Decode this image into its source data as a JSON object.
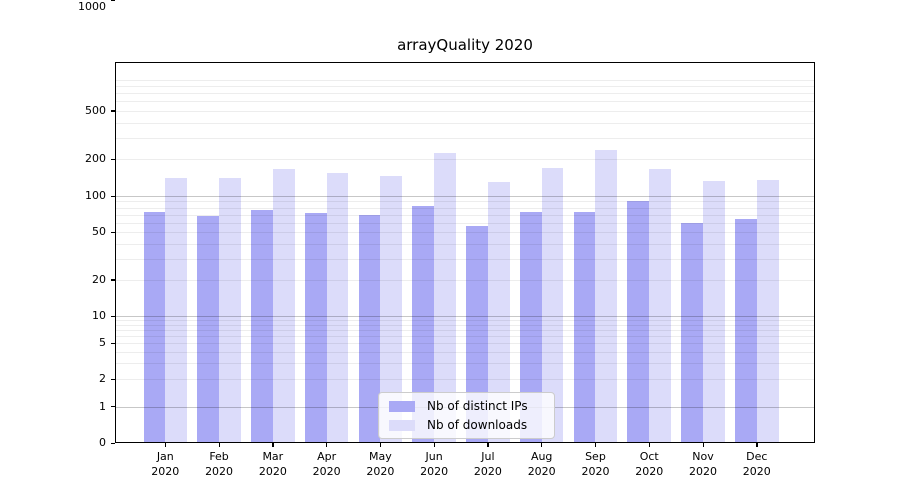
{
  "title": "arrayQuality 2020",
  "chart_data": {
    "type": "bar",
    "title": "arrayQuality 2020",
    "categories": [
      "Jan 2020",
      "Feb 2020",
      "Mar 2020",
      "Apr 2020",
      "May 2020",
      "Jun 2020",
      "Jul 2020",
      "Aug 2020",
      "Sep 2020",
      "Oct 2020",
      "Nov 2020",
      "Dec 2020"
    ],
    "series": [
      {
        "name": "Nb of distinct IPs",
        "color": "#a9a9f5",
        "values": [
          74,
          68,
          76,
          72,
          70,
          82,
          56,
          74,
          74,
          90,
          59,
          64
        ]
      },
      {
        "name": "Nb of downloads",
        "color": "#dcdcfa",
        "values": [
          140,
          140,
          165,
          155,
          146,
          227,
          130,
          170,
          238,
          168,
          133,
          136
        ]
      }
    ],
    "xlabel": "",
    "ylabel": "",
    "yscale": "symlog",
    "ylim": [
      0,
      1250
    ],
    "yticks": [
      0,
      1,
      2,
      5,
      10,
      20,
      50,
      100,
      200,
      500,
      1000
    ],
    "ytick_labels": [
      "0",
      "1",
      "2",
      "5",
      "10",
      "20",
      "50",
      "100",
      "200",
      "500",
      "1000"
    ],
    "minor_grid_values": [
      2,
      3,
      4,
      5,
      6,
      7,
      8,
      9,
      20,
      30,
      40,
      50,
      60,
      70,
      80,
      90,
      200,
      300,
      400,
      500,
      600,
      700,
      800,
      900
    ],
    "major_grid_values": [
      1,
      10,
      100,
      1000
    ],
    "grid": true,
    "legend_position": "lower center",
    "colors": {
      "axis": "#000000",
      "grid_major": "#c8c8c8",
      "grid_minor": "#ececec",
      "legend_border": "#cccccc",
      "background": "#ffffff"
    }
  }
}
